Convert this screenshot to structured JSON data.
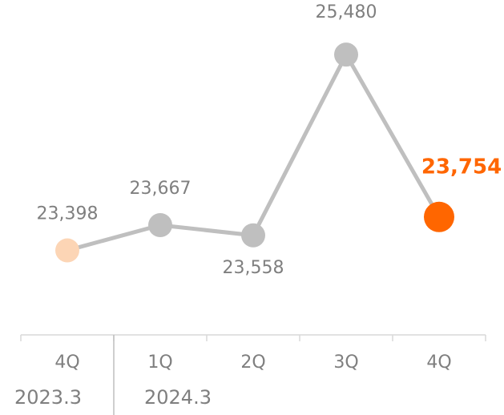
{
  "chart_data": {
    "type": "line",
    "categories": [
      "4Q",
      "1Q",
      "2Q",
      "3Q",
      "4Q"
    ],
    "groups": [
      {
        "label": "2023.3",
        "count": 1
      },
      {
        "label": "2024.3",
        "count": 4
      }
    ],
    "series": [
      {
        "color": "#bfbfbf",
        "values": [
          23398,
          23667,
          23558,
          25480,
          23754
        ],
        "value_labels": [
          "23,398",
          "23,667",
          "23,558",
          "25,480",
          "23,754"
        ],
        "point_colors": [
          "#fcd5b5",
          "#bfbfbf",
          "#bfbfbf",
          "#bfbfbf",
          "#ff6600"
        ]
      }
    ],
    "ylim": [
      22500,
      26060
    ]
  }
}
